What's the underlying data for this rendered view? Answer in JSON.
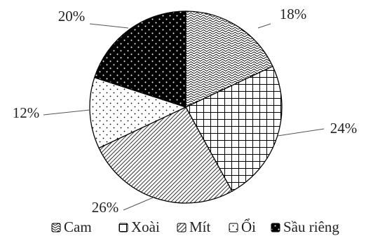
{
  "chart_data": {
    "type": "pie",
    "title": "",
    "categories": [
      "Cam",
      "Xoài",
      "Mít",
      "Ổi",
      "Sầu riêng"
    ],
    "values": [
      18,
      24,
      26,
      12,
      20
    ],
    "labels": [
      "18%",
      "24%",
      "26%",
      "12%",
      "20%"
    ],
    "patterns": [
      "wave",
      "grid",
      "diagonal",
      "dots",
      "black-dots"
    ],
    "legend_position": "bottom",
    "line_color": "#555555"
  }
}
